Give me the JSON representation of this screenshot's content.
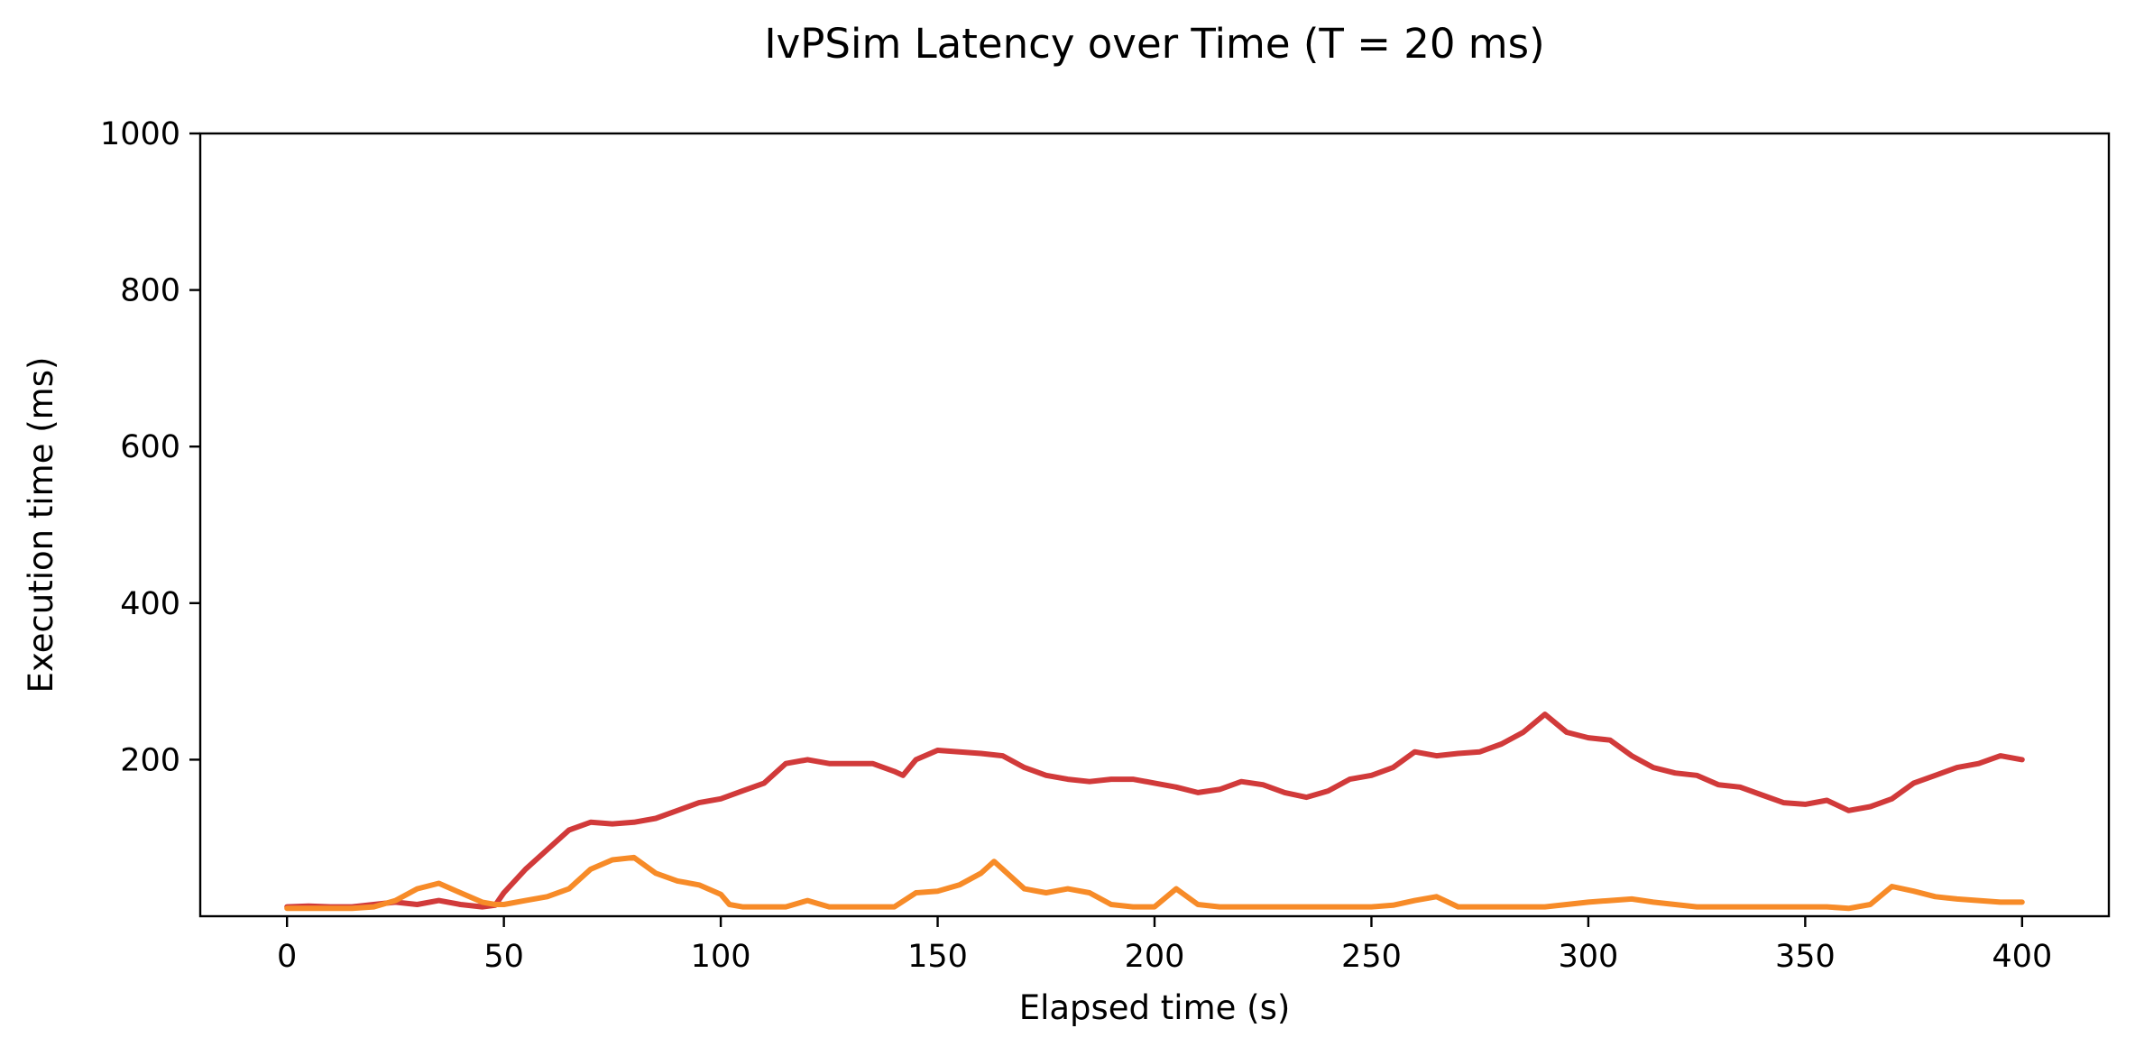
{
  "chart_data": {
    "type": "line",
    "title": "IvPSim Latency over Time (T = 20 ms)",
    "xlabel": "Elapsed time (s)",
    "ylabel": "Execution time (ms)",
    "xlim": [
      -20,
      420
    ],
    "ylim": [
      0,
      1000
    ],
    "xticks": [
      0,
      50,
      100,
      150,
      200,
      250,
      300,
      350,
      400
    ],
    "yticks": [
      200,
      400,
      600,
      800,
      1000
    ],
    "grid": false,
    "series": [
      {
        "color": "#d13a3a",
        "x": [
          0,
          5,
          10,
          15,
          20,
          25,
          30,
          35,
          40,
          45,
          48,
          50,
          55,
          60,
          65,
          70,
          75,
          80,
          85,
          90,
          95,
          100,
          105,
          110,
          115,
          120,
          125,
          130,
          135,
          140,
          142,
          145,
          150,
          155,
          160,
          165,
          170,
          175,
          180,
          185,
          190,
          195,
          200,
          205,
          210,
          215,
          220,
          225,
          230,
          235,
          240,
          245,
          250,
          255,
          260,
          265,
          270,
          275,
          280,
          285,
          290,
          295,
          300,
          305,
          310,
          315,
          320,
          325,
          330,
          335,
          340,
          345,
          350,
          355,
          360,
          365,
          370,
          375,
          380,
          385,
          390,
          395,
          400
        ],
        "y": [
          12,
          13,
          12,
          12,
          15,
          18,
          15,
          20,
          15,
          12,
          14,
          30,
          60,
          85,
          110,
          120,
          118,
          120,
          125,
          135,
          145,
          150,
          160,
          170,
          195,
          200,
          195,
          195,
          195,
          185,
          180,
          200,
          212,
          210,
          208,
          205,
          190,
          180,
          175,
          172,
          175,
          175,
          170,
          165,
          158,
          162,
          172,
          168,
          158,
          152,
          160,
          175,
          180,
          190,
          210,
          205,
          208,
          210,
          220,
          235,
          258,
          235,
          228,
          225,
          205,
          190,
          183,
          180,
          168,
          165,
          155,
          145,
          143,
          148,
          135,
          140,
          150,
          170,
          180,
          190,
          195,
          205,
          200
        ]
      },
      {
        "color": "#f78b28",
        "x": [
          0,
          5,
          10,
          15,
          20,
          25,
          30,
          35,
          40,
          45,
          48,
          50,
          55,
          60,
          65,
          70,
          75,
          80,
          85,
          90,
          95,
          100,
          102,
          105,
          110,
          115,
          120,
          125,
          130,
          135,
          140,
          145,
          150,
          155,
          160,
          163,
          165,
          170,
          175,
          180,
          185,
          190,
          195,
          200,
          205,
          210,
          215,
          220,
          225,
          230,
          235,
          240,
          245,
          250,
          255,
          260,
          265,
          270,
          275,
          280,
          285,
          290,
          295,
          300,
          305,
          310,
          315,
          320,
          325,
          330,
          335,
          340,
          345,
          350,
          355,
          360,
          365,
          370,
          375,
          380,
          385,
          390,
          395,
          400
        ],
        "y": [
          10,
          10,
          10,
          10,
          12,
          20,
          35,
          42,
          30,
          18,
          15,
          15,
          20,
          25,
          35,
          60,
          72,
          75,
          55,
          45,
          40,
          28,
          15,
          12,
          12,
          12,
          20,
          12,
          12,
          12,
          12,
          30,
          32,
          40,
          55,
          70,
          60,
          35,
          30,
          35,
          30,
          15,
          12,
          12,
          35,
          15,
          12,
          12,
          12,
          12,
          12,
          12,
          12,
          12,
          14,
          20,
          25,
          12,
          12,
          12,
          12,
          12,
          15,
          18,
          20,
          22,
          18,
          15,
          12,
          12,
          12,
          12,
          12,
          12,
          12,
          10,
          15,
          38,
          32,
          25,
          22,
          20,
          18,
          18
        ]
      }
    ]
  }
}
